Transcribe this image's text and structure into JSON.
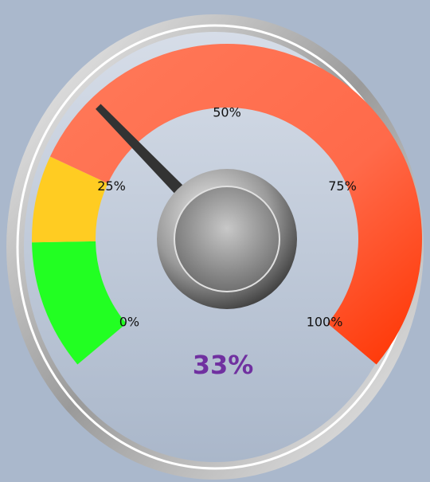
{
  "chart_data": {
    "type": "gauge",
    "value": 33,
    "value_label": "33%",
    "ylim": [
      0,
      100
    ],
    "yticks": [
      {
        "value": 0,
        "label": "0%"
      },
      {
        "value": 25,
        "label": "25%"
      },
      {
        "value": 50,
        "label": "50%"
      },
      {
        "value": 75,
        "label": "75%"
      },
      {
        "value": 100,
        "label": "100%"
      }
    ],
    "bands": [
      {
        "from": 0,
        "to": 15,
        "color": "#22ff22"
      },
      {
        "from": 15,
        "to": 25,
        "color": "#ffcc22"
      },
      {
        "from": 25,
        "to": 100,
        "color": "#ff4422"
      }
    ]
  }
}
